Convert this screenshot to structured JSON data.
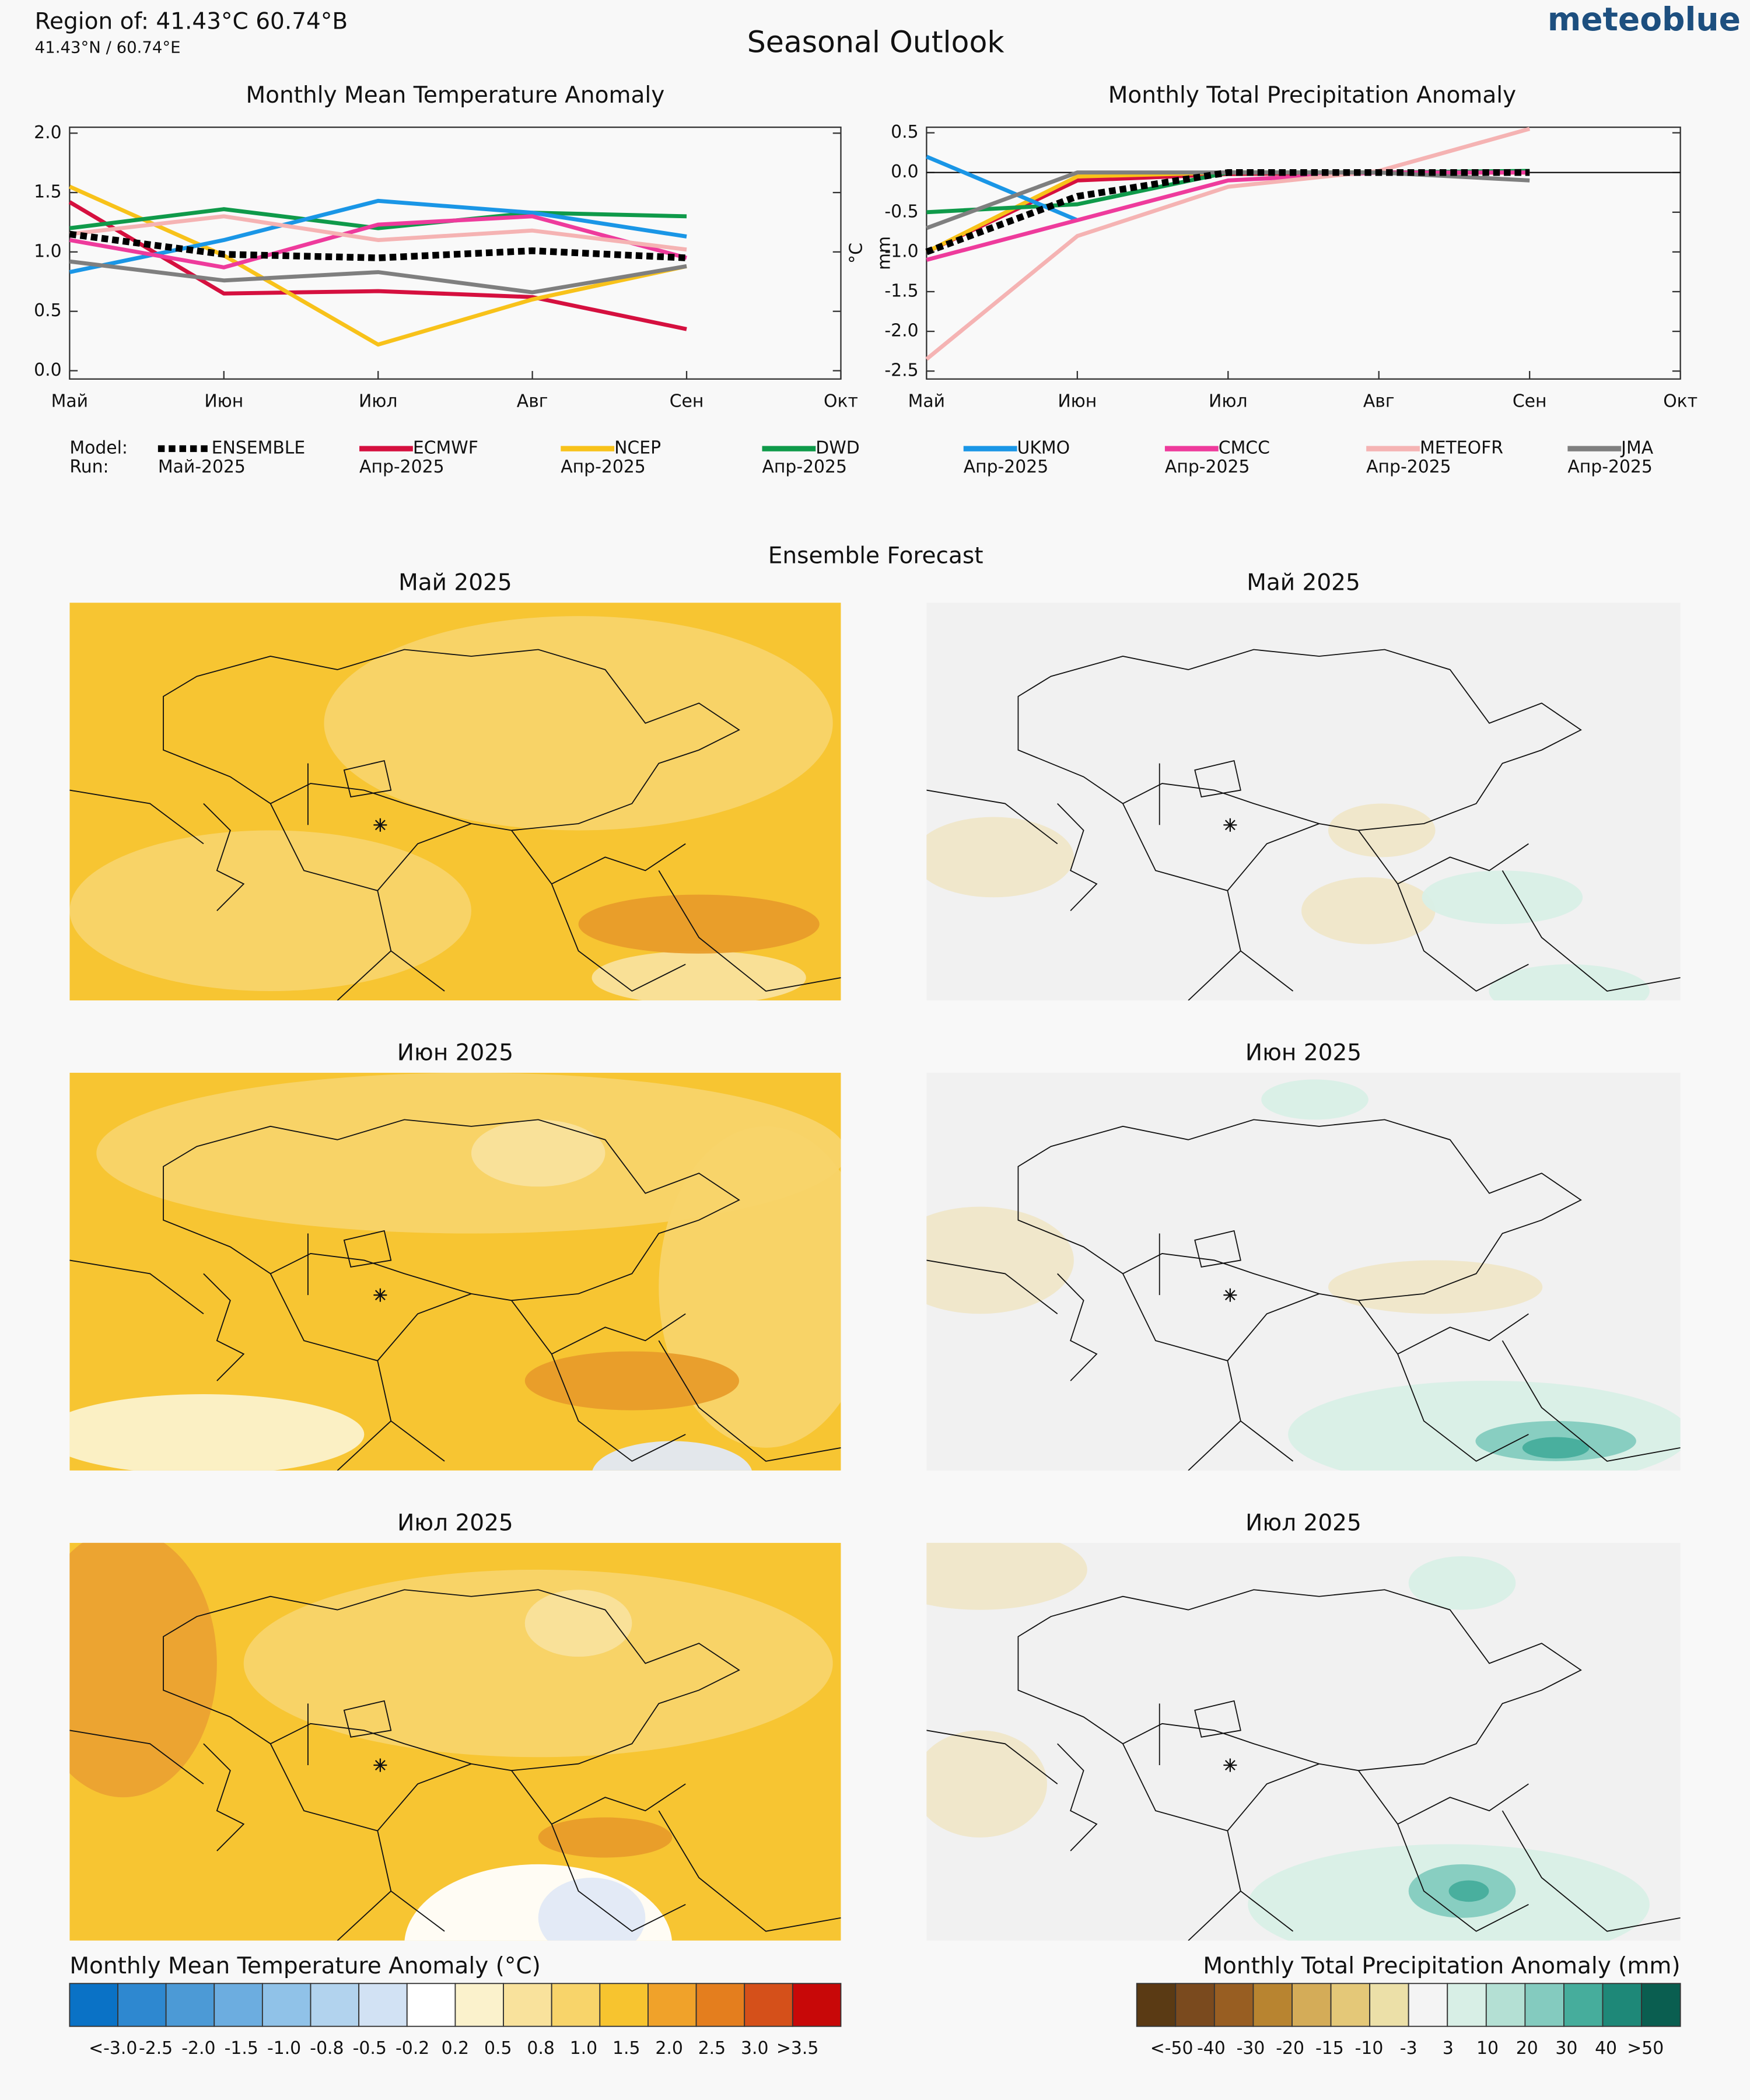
{
  "header": {
    "region": "Region of: 41.43°C 60.74°B",
    "coords": "41.43°N / 60.74°E",
    "title": "Seasonal Outlook",
    "logo": "meteoblue"
  },
  "chart_data": [
    {
      "type": "line",
      "title": "Monthly Mean Temperature Anomaly",
      "ylabel": "°C",
      "categories": [
        "Май",
        "Июн",
        "Июл",
        "Авг",
        "Сен",
        "Окт"
      ],
      "ylim": [
        -0.07,
        2.05
      ],
      "yticks": [
        {
          "value": 0,
          "label": "0.0"
        },
        0.5,
        {
          "value": 1,
          "label": "1.0"
        },
        1.5,
        {
          "value": 2,
          "label": "2.0"
        }
      ],
      "series": [
        {
          "name": "ENSEMBLE",
          "run": "Май-2025",
          "color": "#000000",
          "style": "dotted",
          "values": [
            1.15,
            0.98,
            0.95,
            1.01,
            0.95,
            null
          ]
        },
        {
          "name": "ECMWF",
          "run": "Апр-2025",
          "color": "#d5103f",
          "values": [
            1.42,
            0.65,
            0.67,
            0.62,
            0.35,
            null
          ]
        },
        {
          "name": "NCEP",
          "run": "Апр-2025",
          "color": "#f8c21a",
          "values": [
            1.55,
            0.97,
            0.22,
            0.6,
            0.88,
            null
          ]
        },
        {
          "name": "DWD",
          "run": "Апр-2025",
          "color": "#0f9a4a",
          "values": [
            1.2,
            1.36,
            1.2,
            1.33,
            1.3,
            null
          ]
        },
        {
          "name": "UKMO",
          "run": "Апр-2025",
          "color": "#1a96e6",
          "values": [
            0.83,
            1.1,
            1.43,
            1.33,
            1.13,
            null
          ]
        },
        {
          "name": "CMCC",
          "run": "Апр-2025",
          "color": "#ee3b9c",
          "values": [
            1.1,
            0.87,
            1.23,
            1.3,
            0.95,
            null
          ]
        },
        {
          "name": "METEOFR",
          "run": "Апр-2025",
          "color": "#f5b3b3",
          "values": [
            1.15,
            1.3,
            1.1,
            1.18,
            1.02,
            null
          ]
        },
        {
          "name": "JMA",
          "run": "Апр-2025",
          "color": "#7f7f7f",
          "values": [
            0.92,
            0.76,
            0.83,
            0.66,
            0.88,
            null
          ]
        }
      ]
    },
    {
      "type": "line",
      "title": "Monthly Total Precipitation Anomaly",
      "ylabel": "mm",
      "categories": [
        "Май",
        "Июн",
        "Июл",
        "Авг",
        "Сен",
        "Окт"
      ],
      "ylim": [
        -2.6,
        0.57
      ],
      "zero_line": true,
      "yticks": [
        {
          "value": -2.5,
          "label": "-2.5"
        },
        {
          "value": -2,
          "label": "-2.0"
        },
        -1.5,
        {
          "value": -1,
          "label": "-1.0"
        },
        -0.5,
        {
          "value": 0,
          "label": "0.0"
        },
        0.5
      ],
      "series": [
        {
          "color": "#000000",
          "style": "dotted",
          "values": [
            -1.0,
            -0.3,
            0.0,
            0.0,
            0.0,
            null
          ]
        },
        {
          "color": "#d5103f",
          "values": [
            -1.0,
            -0.1,
            -0.02,
            0.0,
            0.0,
            null
          ]
        },
        {
          "color": "#f8c21a",
          "values": [
            -1.0,
            -0.05,
            0.0,
            0.0,
            0.0,
            null
          ]
        },
        {
          "color": "#0f9a4a",
          "values": [
            -0.5,
            -0.4,
            0.0,
            0.0,
            0.02,
            null
          ]
        },
        {
          "color": "#1a96e6",
          "values": [
            0.2,
            -0.6,
            null,
            null,
            null,
            null
          ]
        },
        {
          "color": "#ee3b9c",
          "values": [
            -1.1,
            -0.6,
            -0.1,
            0.0,
            0.0,
            null
          ]
        },
        {
          "color": "#f5b3b3",
          "values": [
            -2.35,
            -0.8,
            -0.18,
            0.02,
            0.55,
            null
          ]
        },
        {
          "color": "#7f7f7f",
          "values": [
            -0.7,
            0.0,
            0.0,
            0.0,
            -0.1,
            null
          ]
        }
      ]
    }
  ],
  "legend": {
    "model_label": "Model:",
    "run_label": "Run:"
  },
  "maps": {
    "title": "Ensemble Forecast",
    "panels": [
      {
        "title": "Май 2025"
      },
      {
        "title": "Май 2025"
      },
      {
        "title": "Июн 2025"
      },
      {
        "title": "Июн 2025"
      },
      {
        "title": "Июл 2025"
      },
      {
        "title": "Июл 2025"
      }
    ]
  },
  "colorbars": [
    {
      "title": "Monthly Mean Temperature Anomaly (°C)",
      "colors": [
        "#0a72c6",
        "#2e88d0",
        "#4c9ad6",
        "#6cade0",
        "#90c2e8",
        "#b2d3ee",
        "#d2e2f4",
        "#ffffff",
        "#fbf2cc",
        "#f9e29c",
        "#f8d46a",
        "#f7c42f",
        "#f0a22a",
        "#e47e1e",
        "#d5501a",
        "#c80808"
      ],
      "labels": [
        "<-3.0",
        "-2.5",
        "-2.0",
        "-1.5",
        "-1.0",
        "-0.8",
        "-0.5",
        "-0.2",
        "0.2",
        "0.5",
        "0.8",
        "1.0",
        "1.5",
        "2.0",
        "2.5",
        "3.0",
        ">3.5"
      ]
    },
    {
      "title": "Monthly Total Precipitation Anomaly (mm)",
      "colors": [
        "#5a3a14",
        "#7a4a1e",
        "#985e22",
        "#b88430",
        "#d4ac58",
        "#e4c878",
        "#ece0a8",
        "#f4f4f4",
        "#d8efe6",
        "#b4e0d4",
        "#84cbbf",
        "#46ad9c",
        "#1e8878",
        "#0a5e50"
      ],
      "labels": [
        "<-50",
        "-40",
        "-30",
        "-20",
        "-15",
        "-10",
        "-3",
        "3",
        "10",
        "20",
        "30",
        "40",
        ">50"
      ]
    }
  ]
}
